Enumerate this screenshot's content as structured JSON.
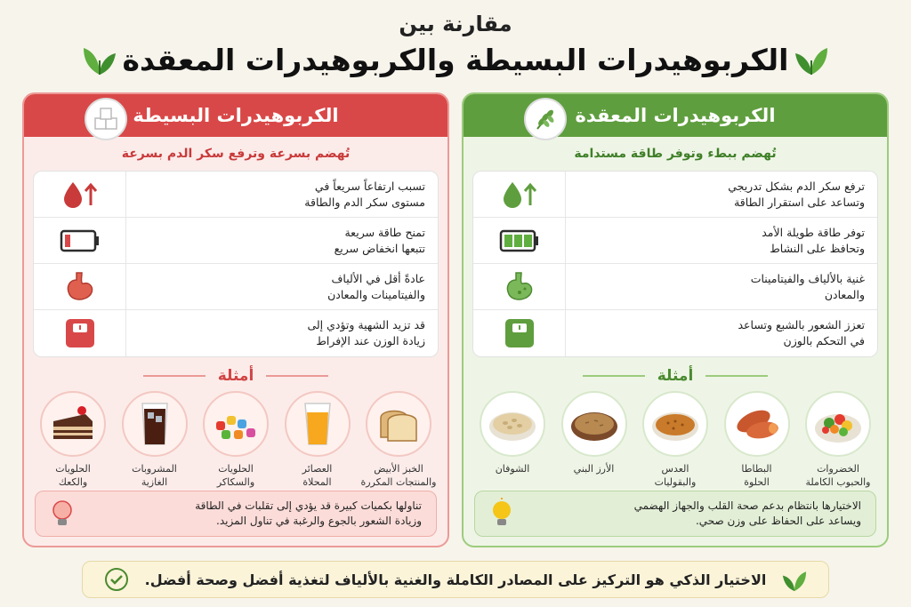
{
  "header": {
    "subtitle": "مقارنة بين",
    "title": "الكربوهيدرات البسيطة والكربوهيدرات المعقدة"
  },
  "complex": {
    "title": "الكربوهيدرات المعقدة",
    "tagline": "تُهضم ببطء وتوفر طاقة مستدامة",
    "features": [
      {
        "text": "ترفع سكر الدم بشكل تدريجي\nوتساعد على استقرار الطاقة",
        "icon": "green-drop-up-icon"
      },
      {
        "text": "توفر طاقة طويلة الأمد\nوتحافظ على النشاط",
        "icon": "full-battery-icon"
      },
      {
        "text": "غنية بالألياف والفيتامينات\nوالمعادن",
        "icon": "healthy-stomach-icon"
      },
      {
        "text": "تعزز الشعور بالشبع وتساعد\nفي التحكم بالوزن",
        "icon": "green-scale-icon"
      }
    ],
    "examples_title": "أمثلة",
    "examples": [
      {
        "label": "الخضروات\nوالحبوب الكاملة",
        "icon": "vegetables-bowl-icon"
      },
      {
        "label": "البطاطا\nالحلوة",
        "icon": "sweet-potato-icon"
      },
      {
        "label": "العدس\nوالبقوليات",
        "icon": "lentils-bowl-icon"
      },
      {
        "label": "الأرز البني",
        "icon": "brown-rice-bowl-icon"
      },
      {
        "label": "الشوفان",
        "icon": "oats-bowl-icon"
      }
    ],
    "tip": "الاختيارها بانتظام بدعم صحة القلب والجهاز الهضمي\nويساعد على الحفاظ على وزن صحي.",
    "colors": {
      "accent": "#5f9e3e",
      "light": "#eef5e6"
    }
  },
  "simple": {
    "title": "الكربوهيدرات البسيطة",
    "tagline": "تُهضم بسرعة وترفع سكر الدم بسرعة",
    "features": [
      {
        "text": "تسبب ارتفاعاً سريعاً في\nمستوى سكر الدم والطاقة",
        "icon": "red-drop-up-icon"
      },
      {
        "text": "تمنح طاقة سريعة\nتتبعها انخفاض سريع",
        "icon": "low-battery-icon"
      },
      {
        "text": "عادةً أقل في الألياف\nوالفيتامينات والمعادن",
        "icon": "red-stomach-icon"
      },
      {
        "text": "قد تزيد الشهية وتؤدي إلى\nزيادة الوزن عند الإفراط",
        "icon": "red-scale-icon"
      }
    ],
    "examples_title": "أمثلة",
    "examples": [
      {
        "label": "الخبز الأبيض\nوالمنتجات المكررة",
        "icon": "white-bread-icon"
      },
      {
        "label": "العصائر\nالمحلاة",
        "icon": "juice-glass-icon"
      },
      {
        "label": "الحلويات\nوالسكاكر",
        "icon": "candies-icon"
      },
      {
        "label": "المشروبات\nالغازية",
        "icon": "soda-glass-icon"
      },
      {
        "label": "الحلويات\nوالكعك",
        "icon": "cake-slice-icon"
      }
    ],
    "tip": "تناولها بكميات كبيرة قد يؤدي إلى تقلبات في الطاقة\nوزيادة الشعور بالجوع والرغبة في تناول المزيد.",
    "colors": {
      "accent": "#d94848",
      "light": "#fbecea"
    }
  },
  "footer": {
    "text": "الاختيار الذكي هو التركيز على المصادر الكاملة والغنية بالألياف لتغذية أفضل وصحة أفضل."
  }
}
